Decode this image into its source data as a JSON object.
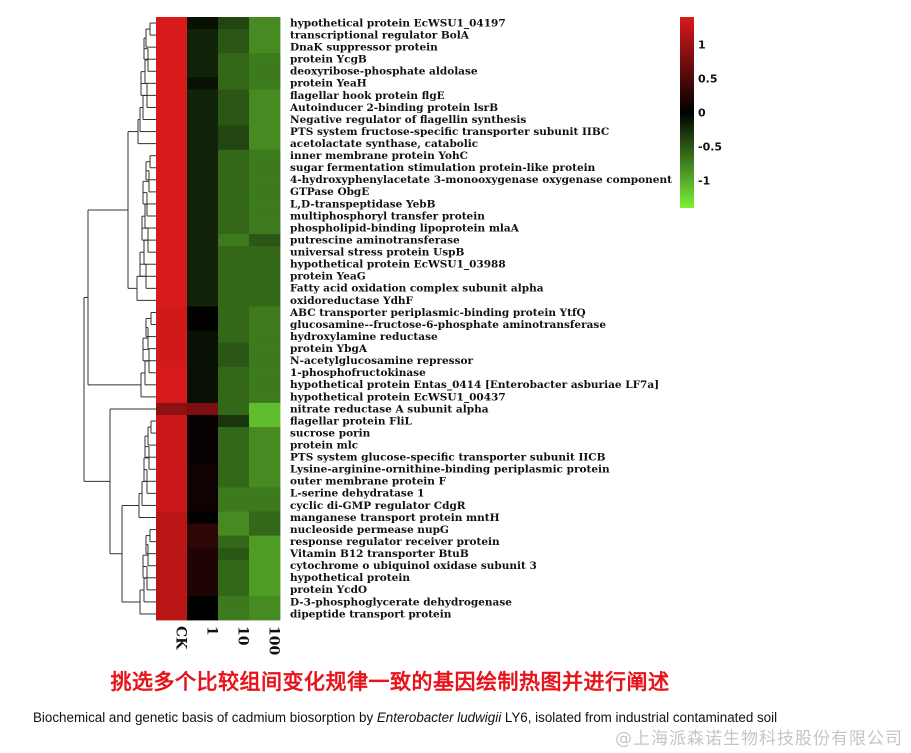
{
  "chart_data": {
    "type": "heatmap",
    "columns": [
      "CK",
      "1",
      "10",
      "100"
    ],
    "rows": [
      {
        "label": "hypothetical protein EcWSU1_04197",
        "values": [
          1.4,
          -0.1,
          -0.4,
          -0.8
        ]
      },
      {
        "label": "transcriptional regulator BolA",
        "values": [
          1.4,
          -0.2,
          -0.5,
          -0.8
        ]
      },
      {
        "label": "DnaK suppressor protein",
        "values": [
          1.4,
          -0.2,
          -0.5,
          -0.8
        ]
      },
      {
        "label": "protein YcgB",
        "values": [
          1.4,
          -0.2,
          -0.6,
          -0.7
        ]
      },
      {
        "label": "deoxyribose-phosphate aldolase",
        "values": [
          1.4,
          -0.2,
          -0.6,
          -0.7
        ]
      },
      {
        "label": "protein YeaH",
        "values": [
          1.4,
          -0.1,
          -0.6,
          -0.7
        ]
      },
      {
        "label": "flagellar hook protein flgE",
        "values": [
          1.4,
          -0.2,
          -0.5,
          -0.8
        ]
      },
      {
        "label": "Autoinducer 2-binding protein lsrB",
        "values": [
          1.4,
          -0.2,
          -0.5,
          -0.8
        ]
      },
      {
        "label": "Negative regulator of flagellin synthesis",
        "values": [
          1.4,
          -0.2,
          -0.5,
          -0.8
        ]
      },
      {
        "label": "PTS system fructose-specific transporter subunit IIBC",
        "values": [
          1.4,
          -0.2,
          -0.4,
          -0.8
        ]
      },
      {
        "label": "acetolactate synthase, catabolic",
        "values": [
          1.4,
          -0.2,
          -0.4,
          -0.8
        ]
      },
      {
        "label": "inner membrane protein YohC",
        "values": [
          1.4,
          -0.2,
          -0.6,
          -0.7
        ]
      },
      {
        "label": "sugar fermentation stimulation protein-like protein",
        "values": [
          1.4,
          -0.2,
          -0.6,
          -0.7
        ]
      },
      {
        "label": "4-hydroxyphenylacetate 3-monooxygenase oxygenase component",
        "values": [
          1.4,
          -0.2,
          -0.6,
          -0.7
        ]
      },
      {
        "label": "GTPase ObgE",
        "values": [
          1.4,
          -0.2,
          -0.6,
          -0.7
        ]
      },
      {
        "label": "L,D-transpeptidase YebB",
        "values": [
          1.4,
          -0.2,
          -0.6,
          -0.7
        ]
      },
      {
        "label": "multiphosphoryl transfer protein",
        "values": [
          1.4,
          -0.2,
          -0.6,
          -0.7
        ]
      },
      {
        "label": "phospholipid-binding lipoprotein mlaA",
        "values": [
          1.4,
          -0.2,
          -0.6,
          -0.7
        ]
      },
      {
        "label": "putrescine aminotransferase",
        "values": [
          1.4,
          -0.2,
          -0.7,
          -0.5
        ]
      },
      {
        "label": "universal stress protein UspB",
        "values": [
          1.4,
          -0.2,
          -0.6,
          -0.6
        ]
      },
      {
        "label": "hypothetical protein EcWSU1_03988",
        "values": [
          1.4,
          -0.2,
          -0.6,
          -0.6
        ]
      },
      {
        "label": "protein YeaG",
        "values": [
          1.4,
          -0.2,
          -0.6,
          -0.6
        ]
      },
      {
        "label": "Fatty acid oxidation complex subunit alpha",
        "values": [
          1.4,
          -0.2,
          -0.6,
          -0.6
        ]
      },
      {
        "label": "oxidoreductase YdhF",
        "values": [
          1.4,
          -0.2,
          -0.6,
          -0.6
        ]
      },
      {
        "label": "ABC transporter periplasmic-binding protein YtfQ",
        "values": [
          1.35,
          0.0,
          -0.6,
          -0.7
        ]
      },
      {
        "label": "glucosamine--fructose-6-phosphate aminotransferase",
        "values": [
          1.35,
          0.0,
          -0.6,
          -0.7
        ]
      },
      {
        "label": "hydroxylamine reductase",
        "values": [
          1.35,
          -0.1,
          -0.6,
          -0.7
        ]
      },
      {
        "label": "protein YbgA",
        "values": [
          1.35,
          -0.1,
          -0.5,
          -0.7
        ]
      },
      {
        "label": "N-acetylglucosamine repressor",
        "values": [
          1.35,
          -0.1,
          -0.5,
          -0.7
        ]
      },
      {
        "label": "1-phosphofructokinase",
        "values": [
          1.4,
          -0.1,
          -0.6,
          -0.7
        ]
      },
      {
        "label": "hypothetical protein Entas_0414 [Enterobacter asburiae LF7a]",
        "values": [
          1.4,
          -0.1,
          -0.6,
          -0.7
        ]
      },
      {
        "label": "hypothetical protein EcWSU1_00437",
        "values": [
          1.4,
          -0.1,
          -0.6,
          -0.7
        ]
      },
      {
        "label": "nitrate reductase A subunit alpha",
        "values": [
          0.9,
          0.8,
          -0.6,
          -1.1
        ]
      },
      {
        "label": "flagellar protein FliL",
        "values": [
          1.3,
          0.05,
          -0.3,
          -1.1
        ]
      },
      {
        "label": "sucrose porin",
        "values": [
          1.3,
          0.05,
          -0.6,
          -0.8
        ]
      },
      {
        "label": "protein mlc",
        "values": [
          1.3,
          0.05,
          -0.6,
          -0.8
        ]
      },
      {
        "label": "PTS system glucose-specific transporter subunit IICB",
        "values": [
          1.3,
          0.05,
          -0.6,
          -0.8
        ]
      },
      {
        "label": "Lysine-arginine-ornithine-binding periplasmic protein",
        "values": [
          1.3,
          0.1,
          -0.6,
          -0.8
        ]
      },
      {
        "label": "outer membrane protein F",
        "values": [
          1.3,
          0.1,
          -0.6,
          -0.8
        ]
      },
      {
        "label": "L-serine dehydratase 1",
        "values": [
          1.3,
          0.1,
          -0.7,
          -0.7
        ]
      },
      {
        "label": "cyclic di-GMP regulator CdgR",
        "values": [
          1.3,
          0.1,
          -0.7,
          -0.7
        ]
      },
      {
        "label": "manganese transport protein mntH",
        "values": [
          1.2,
          0.0,
          -0.8,
          -0.6
        ]
      },
      {
        "label": "nucleoside permease nupG",
        "values": [
          1.2,
          0.3,
          -0.8,
          -0.6
        ]
      },
      {
        "label": "response regulator receiver protein",
        "values": [
          1.2,
          0.3,
          -0.6,
          -0.9
        ]
      },
      {
        "label": "Vitamin B12 transporter BtuB",
        "values": [
          1.2,
          0.2,
          -0.5,
          -0.9
        ]
      },
      {
        "label": "cytochrome o ubiquinol oxidase subunit 3",
        "values": [
          1.2,
          0.2,
          -0.6,
          -0.9
        ]
      },
      {
        "label": "hypothetical protein",
        "values": [
          1.2,
          0.2,
          -0.6,
          -0.9
        ]
      },
      {
        "label": "protein YcdO",
        "values": [
          1.2,
          0.2,
          -0.6,
          -0.9
        ]
      },
      {
        "label": "D-3-phosphoglycerate dehydrogenase",
        "values": [
          1.2,
          0.0,
          -0.7,
          -0.8
        ]
      },
      {
        "label": "dipeptide transport protein",
        "values": [
          1.2,
          0.0,
          -0.7,
          -0.8
        ]
      }
    ],
    "color_scale": {
      "min": -1.4,
      "max": 1.4,
      "stops": [
        {
          "value": -1.4,
          "color": "#7af23a"
        },
        {
          "value": 0,
          "color": "#000000"
        },
        {
          "value": 1.4,
          "color": "#d91a1a"
        }
      ],
      "ticks": [
        1,
        0.5,
        0,
        -0.5,
        -1
      ]
    },
    "dendrogram": "rows-left"
  },
  "caption_zh": "挑选多个比较组间变化规律一致的基因绘制热图并进行阐述",
  "caption_en": {
    "before": "Biochemical and genetic basis of cadmium biosorption by ",
    "italic": "Enterobacter ludwigii",
    "after": " LY6, isolated from industrial contaminated soil"
  },
  "watermark": "@上海派森诺生物科技股份有限公司"
}
